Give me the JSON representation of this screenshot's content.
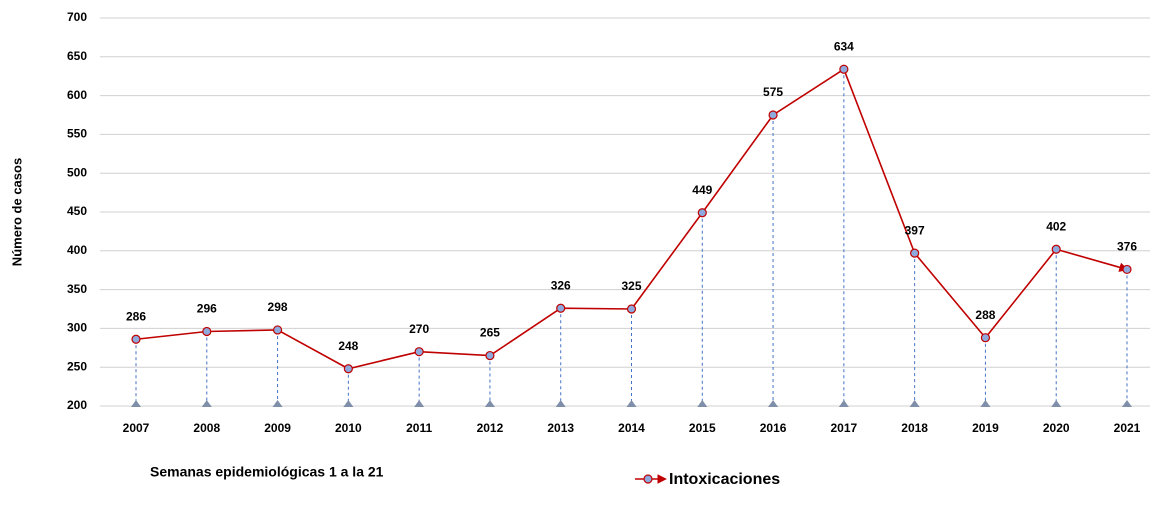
{
  "chart_data": {
    "type": "line",
    "ylabel": "Número de casos",
    "xlabel": "Semanas epidemiológicas 1 a la 21",
    "categories": [
      "2007",
      "2008",
      "2009",
      "2010",
      "2011",
      "2012",
      "2013",
      "2014",
      "2015",
      "2016",
      "2017",
      "2018",
      "2019",
      "2020",
      "2021"
    ],
    "series": [
      {
        "name": "Intoxicaciones",
        "color": "#c00000",
        "values": [
          286,
          296,
          298,
          248,
          270,
          265,
          326,
          325,
          449,
          575,
          634,
          397,
          288,
          402,
          376
        ]
      }
    ],
    "ylim": [
      200,
      700
    ],
    "yticks": [
      200,
      250,
      300,
      350,
      400,
      450,
      500,
      550,
      600,
      650,
      700
    ],
    "grid": true,
    "legend": "bottom"
  }
}
